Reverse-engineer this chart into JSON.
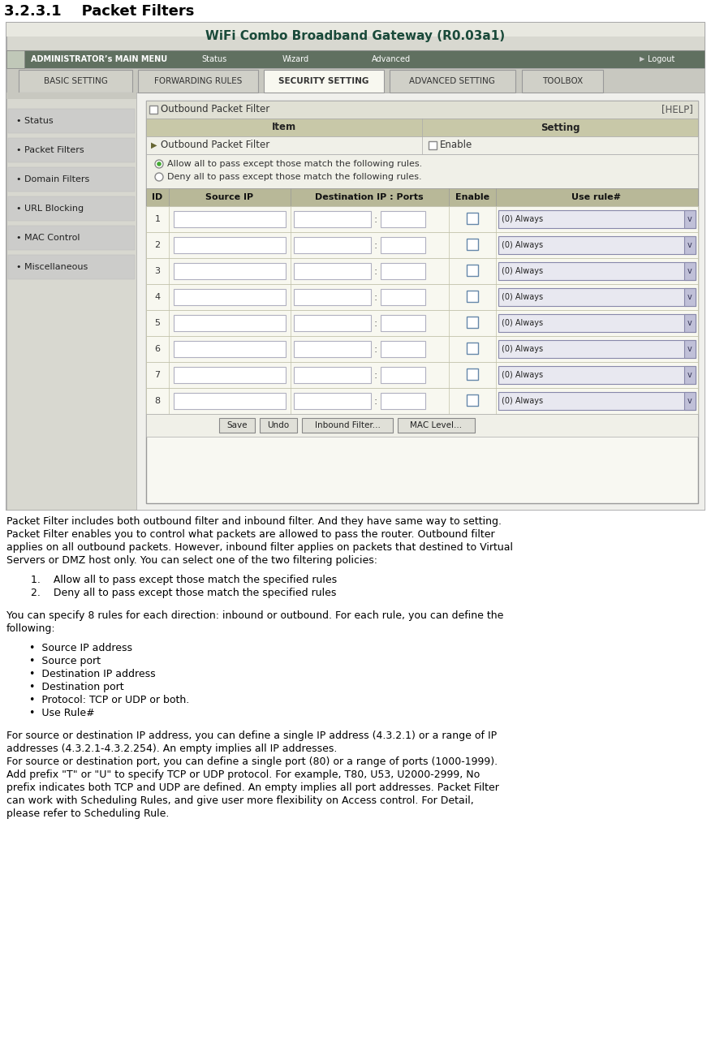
{
  "title": "3.2.3.1    Packet Filters",
  "gateway_title": "WiFi Combo Broadband Gateway (R0.03a1)",
  "nav_items": [
    "ADMINISTRATOR’s MAIN MENU",
    "Status",
    "Wizard",
    "Advanced",
    "Logout"
  ],
  "tab_items": [
    "BASIC SETTING",
    "FORWARDING RULES",
    "SECURITY SETTING",
    "ADVANCED SETTING",
    "TOOLBOX"
  ],
  "active_tab": "SECURITY SETTING",
  "left_menu": [
    "Status",
    "Packet Filters",
    "Domain Filters",
    "URL Blocking",
    "MAC Control",
    "Miscellaneous"
  ],
  "panel_title": "Outbound Packet Filter",
  "help_text": "[HELP]",
  "filter_row_label": "Outbound Packet Filter",
  "enable_label": "Enable",
  "radio1": "Allow all to pass except those match the following rules.",
  "radio2": "Deny all to pass except those match the following rules.",
  "col_headers": [
    "ID",
    "Source IP",
    "Destination IP : Ports",
    "Enable",
    "Use rule#"
  ],
  "num_rows": 8,
  "dropdown_text": "(0) Always",
  "buttons": [
    "Save",
    "Undo",
    "Inbound Filter...",
    "MAC Level..."
  ],
  "para1": "Packet Filter includes both outbound filter and inbound filter. And they have same way to setting.\nPacket Filter enables you to control what packets are allowed to pass the router. Outbound filter\napplies on all outbound packets. However, inbound filter applies on packets that destined to Virtual\nServers or DMZ host only. You can select one of the two filtering policies:",
  "para2_lines": [
    "1.    Allow all to pass except those match the specified rules",
    "2.    Deny all to pass except those match the specified rules"
  ],
  "para3": "You can specify 8 rules for each direction: inbound or outbound. For each rule, you can define the\nfollowing:",
  "bullets": [
    "Source IP address",
    "Source port",
    "Destination IP address",
    "Destination port",
    "Protocol: TCP or UDP or both.",
    "Use Rule#"
  ],
  "para5_lines": [
    "For source or destination IP address, you can define a single IP address (4.3.2.1) or a range of IP",
    "addresses (4.3.2.1-4.3.2.254). An empty implies all IP addresses.",
    "For source or destination port, you can define a single port (80) or a range of ports (1000-1999).",
    "Add prefix \"T\" or \"U\" to specify TCP or UDP protocol. For example, T80, U53, U2000-2999, No",
    "prefix indicates both TCP and UDP are defined. An empty implies all port addresses. Packet Filter",
    "can work with Scheduling Rules, and give user more flexibility on Access control. For Detail,",
    "please refer to Scheduling Rule."
  ]
}
